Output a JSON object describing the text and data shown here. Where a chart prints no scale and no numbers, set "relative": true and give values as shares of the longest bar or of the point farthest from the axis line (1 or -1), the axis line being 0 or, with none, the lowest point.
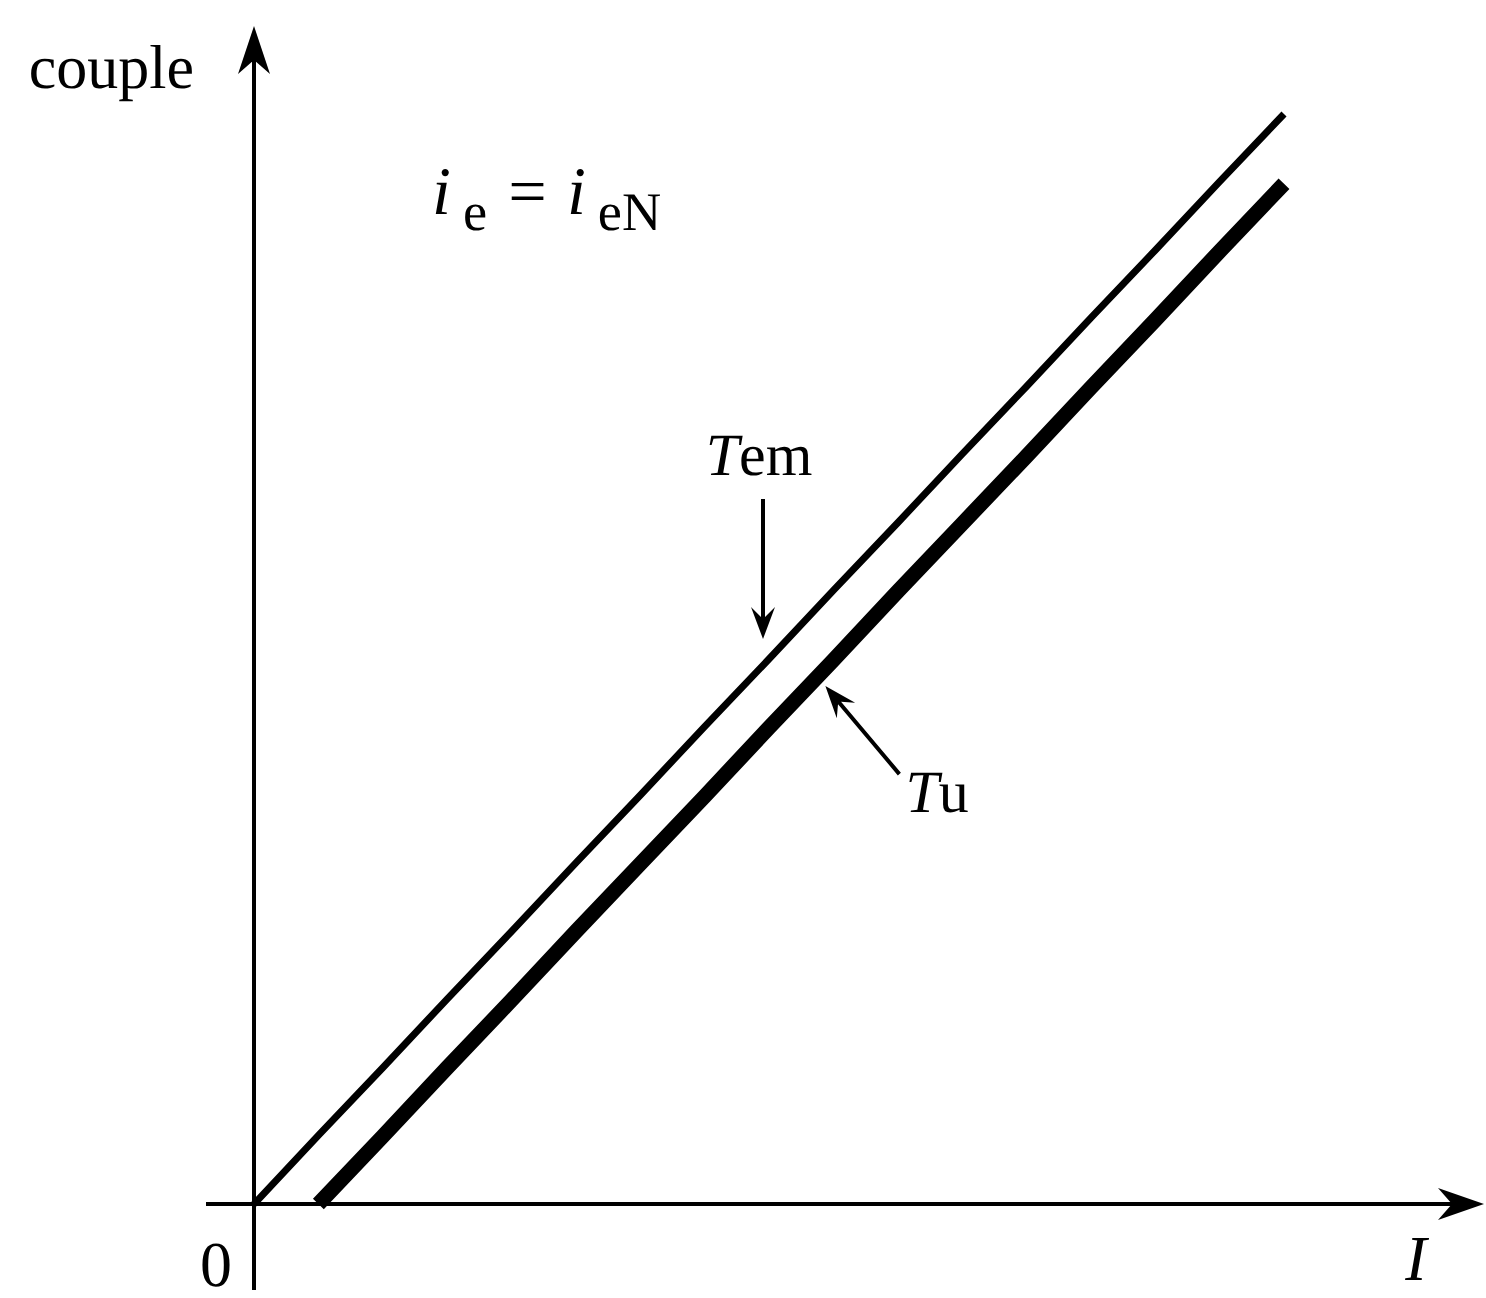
{
  "chart_data": {
    "type": "line",
    "xlabel": "I",
    "ylabel": "couple",
    "relative": true,
    "categories": [
      null,
      null,
      null,
      null,
      null,
      null,
      null,
      null,
      null,
      null,
      null,
      null,
      null,
      null,
      null,
      null,
      null
    ],
    "series": [
      {
        "name": "Tem",
        "color": "#000000",
        "values": [
          0,
          0.063,
          0.125,
          0.188,
          0.25,
          0.313,
          0.375,
          0.438,
          0.5,
          0.563,
          0.625,
          0.688,
          0.75,
          0.813,
          0.875,
          0.938,
          1
        ]
      },
      {
        "name": "Tu",
        "color": "#000000",
        "values": [
          null,
          0,
          0.062,
          0.125,
          0.187,
          0.25,
          0.312,
          0.374,
          0.437,
          0.499,
          0.562,
          0.624,
          0.686,
          0.749,
          0.811,
          0.874,
          0.936
        ]
      }
    ],
    "annotations": [
      "i$_{e}$ = i$_{eN}$",
      "0"
    ]
  }
}
